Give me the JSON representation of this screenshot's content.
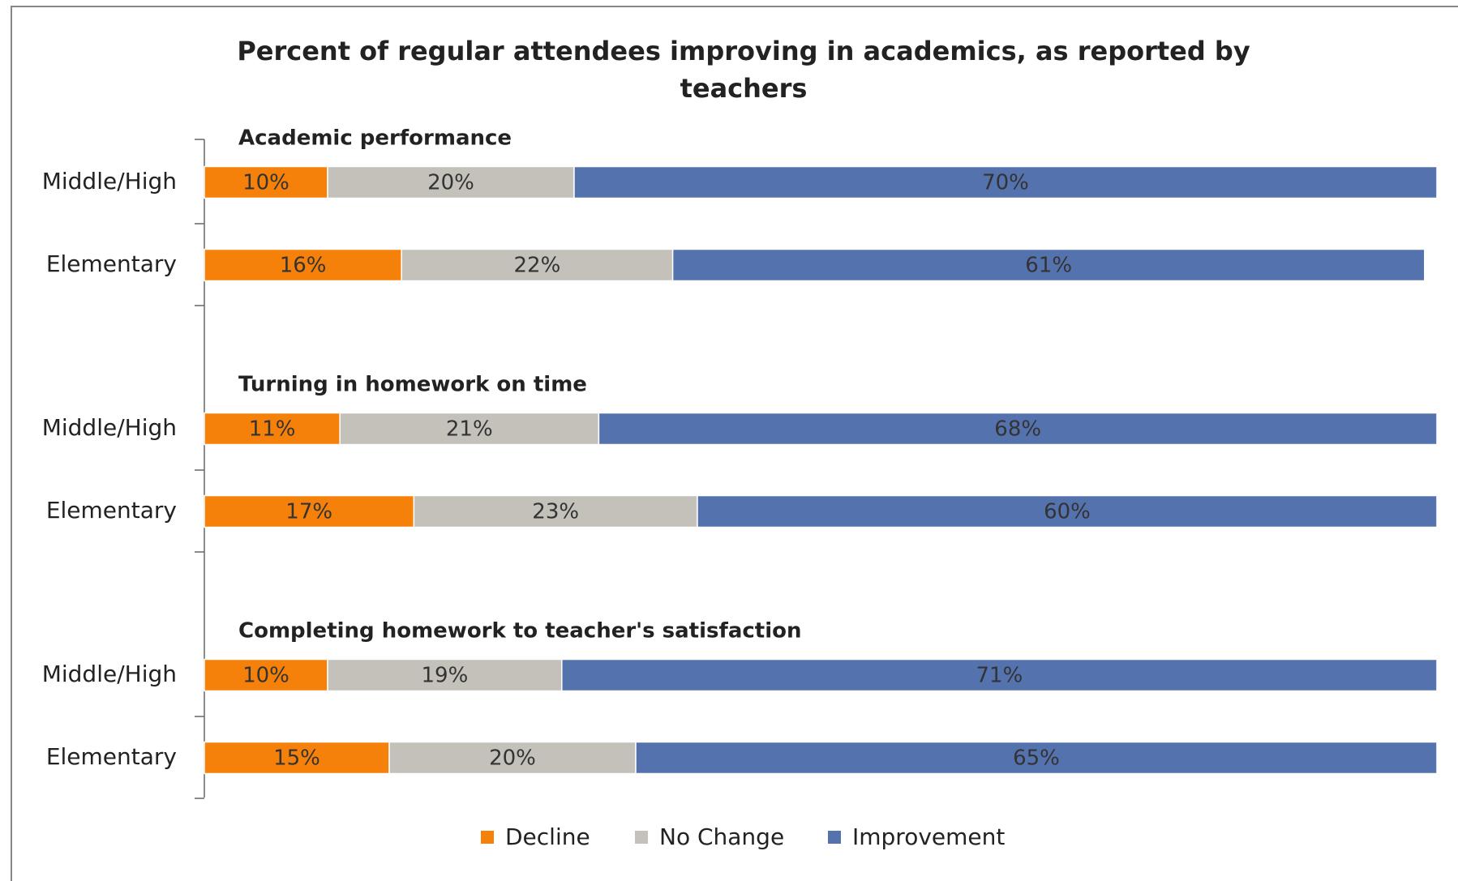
{
  "chart_data": {
    "type": "bar",
    "orientation": "horizontal",
    "stacked": true,
    "title": "Percent of regular attendees improving in academics, as reported by teachers",
    "groups": [
      "Academic performance",
      "Turning in homework on time",
      "Completing homework to teacher's satisfaction"
    ],
    "categories": [
      "Middle/High",
      "Elementary",
      "Middle/High",
      "Elementary",
      "Middle/High",
      "Elementary"
    ],
    "xlim": [
      0,
      100
    ],
    "series": [
      {
        "name": "Decline",
        "color": "#f5800a",
        "values": [
          10,
          16,
          11,
          17,
          10,
          15
        ],
        "value_labels": [
          "10%",
          "16%",
          "11%",
          "17%",
          "10%",
          "15%"
        ]
      },
      {
        "name": "No Change",
        "color": "#c4c0ba",
        "values": [
          20,
          22,
          21,
          23,
          19,
          20
        ],
        "value_labels": [
          "20%",
          "22%",
          "21%",
          "23%",
          "19%",
          "20%"
        ]
      },
      {
        "name": "Improvement",
        "color": "#5472ae",
        "values": [
          70,
          61,
          68,
          60,
          71,
          65
        ],
        "value_labels": [
          "70%",
          "61%",
          "68%",
          "60%",
          "71%",
          "65%"
        ]
      }
    ],
    "legend": "bottom"
  }
}
